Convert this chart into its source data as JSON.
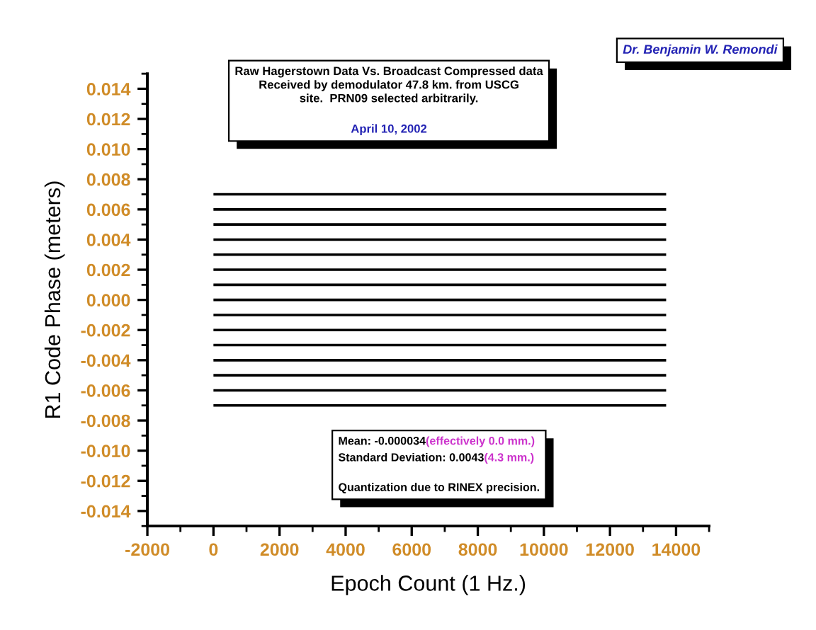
{
  "chart_data": {
    "type": "line",
    "xlabel": "Epoch Count (1 Hz.)",
    "ylabel": "R1 Code Phase (meters)",
    "annotations": [
      "Raw Hagerstown Data Vs. Broadcast Compressed data\nReceived by demodulator 47.8 km. from USCG\nsite.  PRN09 selected arbitrarily.",
      "April 10, 2002",
      "Dr. Benjamin W. Remondi",
      "Mean: -0.000034",
      "(effectively 0.0 mm.)",
      "Standard Deviation: 0.0043",
      "(4.3 mm.)",
      "Quantization due to RINEX precision."
    ],
    "xlim": [
      -2000,
      15000
    ],
    "xticks": [
      -2000,
      0,
      2000,
      4000,
      6000,
      8000,
      10000,
      12000,
      14000
    ],
    "ylim": [
      -0.015,
      0.015
    ],
    "yticks": [
      -0.014,
      -0.012,
      {
        "value": -0.01,
        "label": "-0.010"
      },
      -0.008,
      -0.006,
      -0.004,
      -0.002,
      {
        "value": 0,
        "label": "0.000"
      },
      0.002,
      0.004,
      0.006,
      0.008,
      {
        "value": 0.01,
        "label": "0.010"
      },
      0.012,
      0.014
    ],
    "marker": "none",
    "line_style": "solid",
    "x": [
      0,
      13700
    ],
    "series": [
      {
        "color": "#000000",
        "values": [
          0.007,
          0.007
        ]
      },
      {
        "color": "#000000",
        "values": [
          0.006,
          0.006
        ]
      },
      {
        "color": "#000000",
        "values": [
          0.005,
          0.005
        ]
      },
      {
        "color": "#000000",
        "values": [
          0.004,
          0.004
        ]
      },
      {
        "color": "#000000",
        "values": [
          0.003,
          0.003
        ]
      },
      {
        "color": "#000000",
        "values": [
          0.002,
          0.002
        ]
      },
      {
        "color": "#000000",
        "values": [
          0.001,
          0.001
        ]
      },
      {
        "color": "#000000",
        "values": [
          0,
          0
        ]
      },
      {
        "color": "#000000",
        "values": [
          -0.001,
          -0.001
        ]
      },
      {
        "color": "#000000",
        "values": [
          -0.002,
          -0.002
        ]
      },
      {
        "color": "#000000",
        "values": [
          -0.003,
          -0.003
        ]
      },
      {
        "color": "#000000",
        "values": [
          -0.004,
          -0.004
        ]
      },
      {
        "color": "#000000",
        "values": [
          -0.005,
          -0.005
        ]
      },
      {
        "color": "#000000",
        "values": [
          -0.006,
          -0.006
        ]
      },
      {
        "color": "#000000",
        "values": [
          -0.007,
          -0.007
        ]
      }
    ]
  }
}
